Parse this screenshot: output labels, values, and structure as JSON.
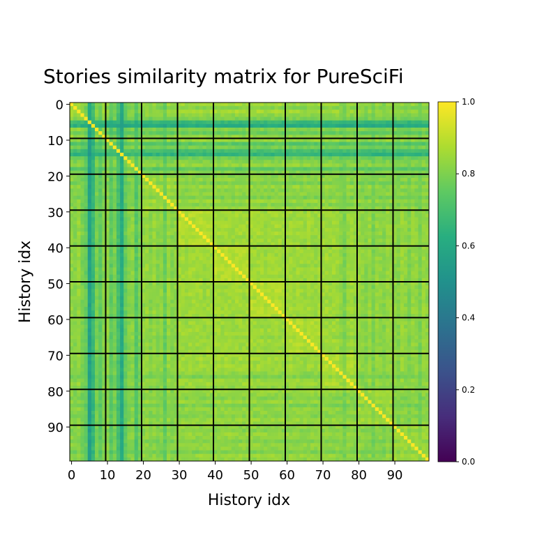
{
  "chart_data": {
    "type": "heatmap",
    "title": "Stories similarity matrix for PureSciFi",
    "xlabel": "History idx",
    "ylabel": "History idx",
    "size": 100,
    "x_ticks": [
      0,
      10,
      20,
      30,
      40,
      50,
      60,
      70,
      80,
      90
    ],
    "y_ticks": [
      0,
      10,
      20,
      30,
      40,
      50,
      60,
      70,
      80,
      90
    ],
    "group_lines_at": [
      9.5,
      19.5,
      29.5,
      39.5,
      49.5,
      59.5,
      69.5,
      79.5,
      89.5
    ],
    "colormap": "viridis",
    "vmin": 0.0,
    "vmax": 1.0,
    "colorbar_ticks": [
      "0.0",
      "0.2",
      "0.4",
      "0.6",
      "0.8",
      "1.0"
    ],
    "diagonal_value": 1.0,
    "grid": false,
    "row_profile_estimate": [
      0.86,
      0.8,
      0.88,
      0.82,
      0.78,
      0.62,
      0.55,
      0.8,
      0.74,
      0.82,
      0.84,
      0.7,
      0.78,
      0.66,
      0.6,
      0.76,
      0.8,
      0.84,
      0.72,
      0.8,
      0.8,
      0.82,
      0.78,
      0.84,
      0.8,
      0.82,
      0.78,
      0.84,
      0.8,
      0.84,
      0.86,
      0.86,
      0.84,
      0.87,
      0.86,
      0.85,
      0.87,
      0.84,
      0.86,
      0.85,
      0.87,
      0.86,
      0.85,
      0.87,
      0.86,
      0.84,
      0.87,
      0.86,
      0.85,
      0.86,
      0.86,
      0.85,
      0.87,
      0.86,
      0.84,
      0.86,
      0.85,
      0.87,
      0.86,
      0.84,
      0.85,
      0.86,
      0.84,
      0.86,
      0.85,
      0.83,
      0.86,
      0.85,
      0.84,
      0.86,
      0.85,
      0.86,
      0.84,
      0.86,
      0.85,
      0.82,
      0.78,
      0.84,
      0.85,
      0.82,
      0.84,
      0.82,
      0.8,
      0.84,
      0.78,
      0.83,
      0.82,
      0.8,
      0.84,
      0.83,
      0.82,
      0.8,
      0.84,
      0.82,
      0.79,
      0.83,
      0.82,
      0.78,
      0.84,
      0.82
    ],
    "column_profile_estimate": [
      0.82,
      0.8,
      0.84,
      0.78,
      0.74,
      0.5,
      0.62,
      0.78,
      0.72,
      0.8,
      0.82,
      0.72,
      0.78,
      0.66,
      0.55,
      0.74,
      0.8,
      0.82,
      0.7,
      0.78,
      0.82,
      0.84,
      0.8,
      0.84,
      0.8,
      0.82,
      0.74,
      0.84,
      0.8,
      0.82,
      0.86,
      0.86,
      0.84,
      0.87,
      0.86,
      0.85,
      0.87,
      0.84,
      0.86,
      0.85,
      0.87,
      0.86,
      0.85,
      0.87,
      0.86,
      0.84,
      0.87,
      0.86,
      0.85,
      0.86,
      0.86,
      0.85,
      0.87,
      0.86,
      0.84,
      0.86,
      0.85,
      0.87,
      0.86,
      0.84,
      0.85,
      0.86,
      0.84,
      0.86,
      0.85,
      0.83,
      0.86,
      0.85,
      0.84,
      0.86,
      0.85,
      0.86,
      0.84,
      0.86,
      0.85,
      0.82,
      0.78,
      0.84,
      0.85,
      0.82,
      0.84,
      0.82,
      0.8,
      0.84,
      0.78,
      0.83,
      0.82,
      0.8,
      0.84,
      0.83,
      0.82,
      0.8,
      0.84,
      0.82,
      0.79,
      0.83,
      0.82,
      0.78,
      0.84,
      0.82
    ]
  }
}
